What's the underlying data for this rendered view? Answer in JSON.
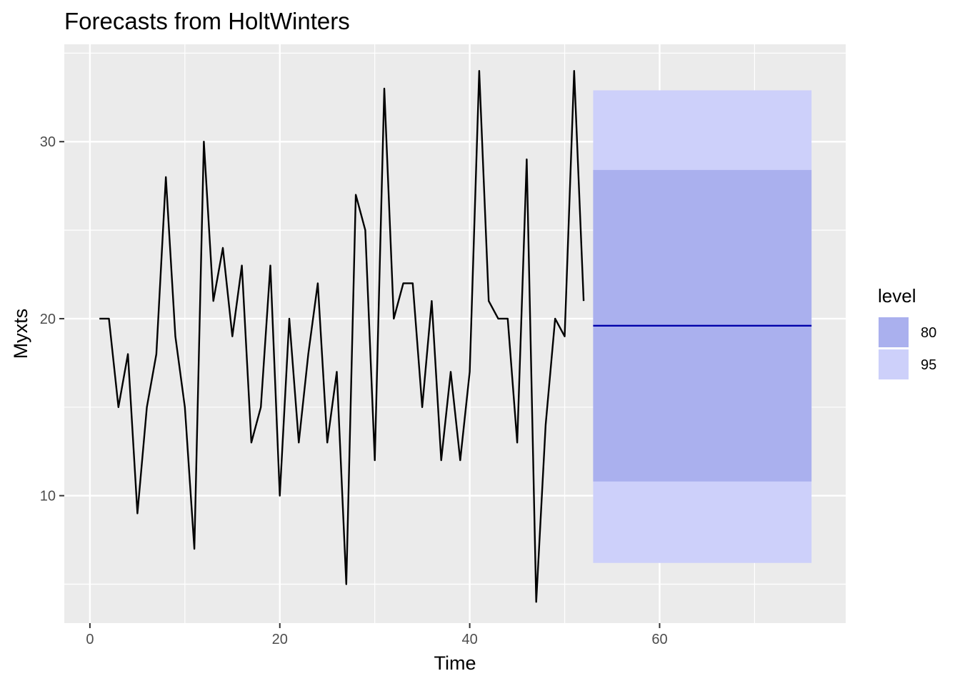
{
  "chart_data": {
    "type": "line",
    "title": "Forecasts from HoltWinters",
    "xlabel": "Time",
    "ylabel": "Myxts",
    "xlim": [
      -2.7,
      79.6
    ],
    "ylim": [
      2.8,
      35.5
    ],
    "x_ticks": [
      0,
      20,
      40,
      60
    ],
    "y_ticks": [
      10,
      20,
      30
    ],
    "grid": true,
    "series": [
      {
        "x": [
          1,
          2,
          3,
          4,
          5,
          6,
          7,
          8,
          9,
          10,
          11,
          12,
          13,
          14,
          15,
          16,
          17,
          18,
          19,
          20,
          21,
          22,
          23,
          24,
          25,
          26,
          27,
          28,
          29,
          30,
          31,
          32,
          33,
          34,
          35,
          36,
          37,
          38,
          39,
          40,
          41,
          42,
          43,
          44,
          45,
          46,
          47,
          48,
          49,
          50,
          51,
          52
        ],
        "values": [
          20,
          20,
          15,
          18,
          9,
          15,
          18,
          28,
          19,
          15,
          7,
          30,
          21,
          24,
          19,
          23,
          13,
          15,
          23,
          10,
          20,
          13,
          18,
          22,
          13,
          17,
          5,
          27,
          25,
          12,
          33,
          20,
          22,
          22,
          15,
          21,
          12,
          17,
          12,
          17,
          34,
          21,
          20,
          20,
          13,
          29,
          4,
          14,
          20,
          19,
          34,
          21
        ],
        "color": "#000000"
      }
    ],
    "forecast": {
      "x_range": [
        53,
        76
      ],
      "mean": 19.6,
      "mean_color": "#0000aa",
      "intervals": [
        {
          "level": "80",
          "lower": 10.8,
          "upper": 28.4,
          "color": "#aab0ee"
        },
        {
          "level": "95",
          "lower": 6.2,
          "upper": 32.9,
          "color": "#cdd0fa"
        }
      ]
    },
    "legend": {
      "title": "level",
      "placement": "right",
      "items": [
        {
          "label": "80",
          "color": "#aab0ee"
        },
        {
          "label": "95",
          "color": "#cdd0fa"
        }
      ]
    },
    "panel_color": "#ebebeb",
    "grid_color": "#ffffff"
  }
}
